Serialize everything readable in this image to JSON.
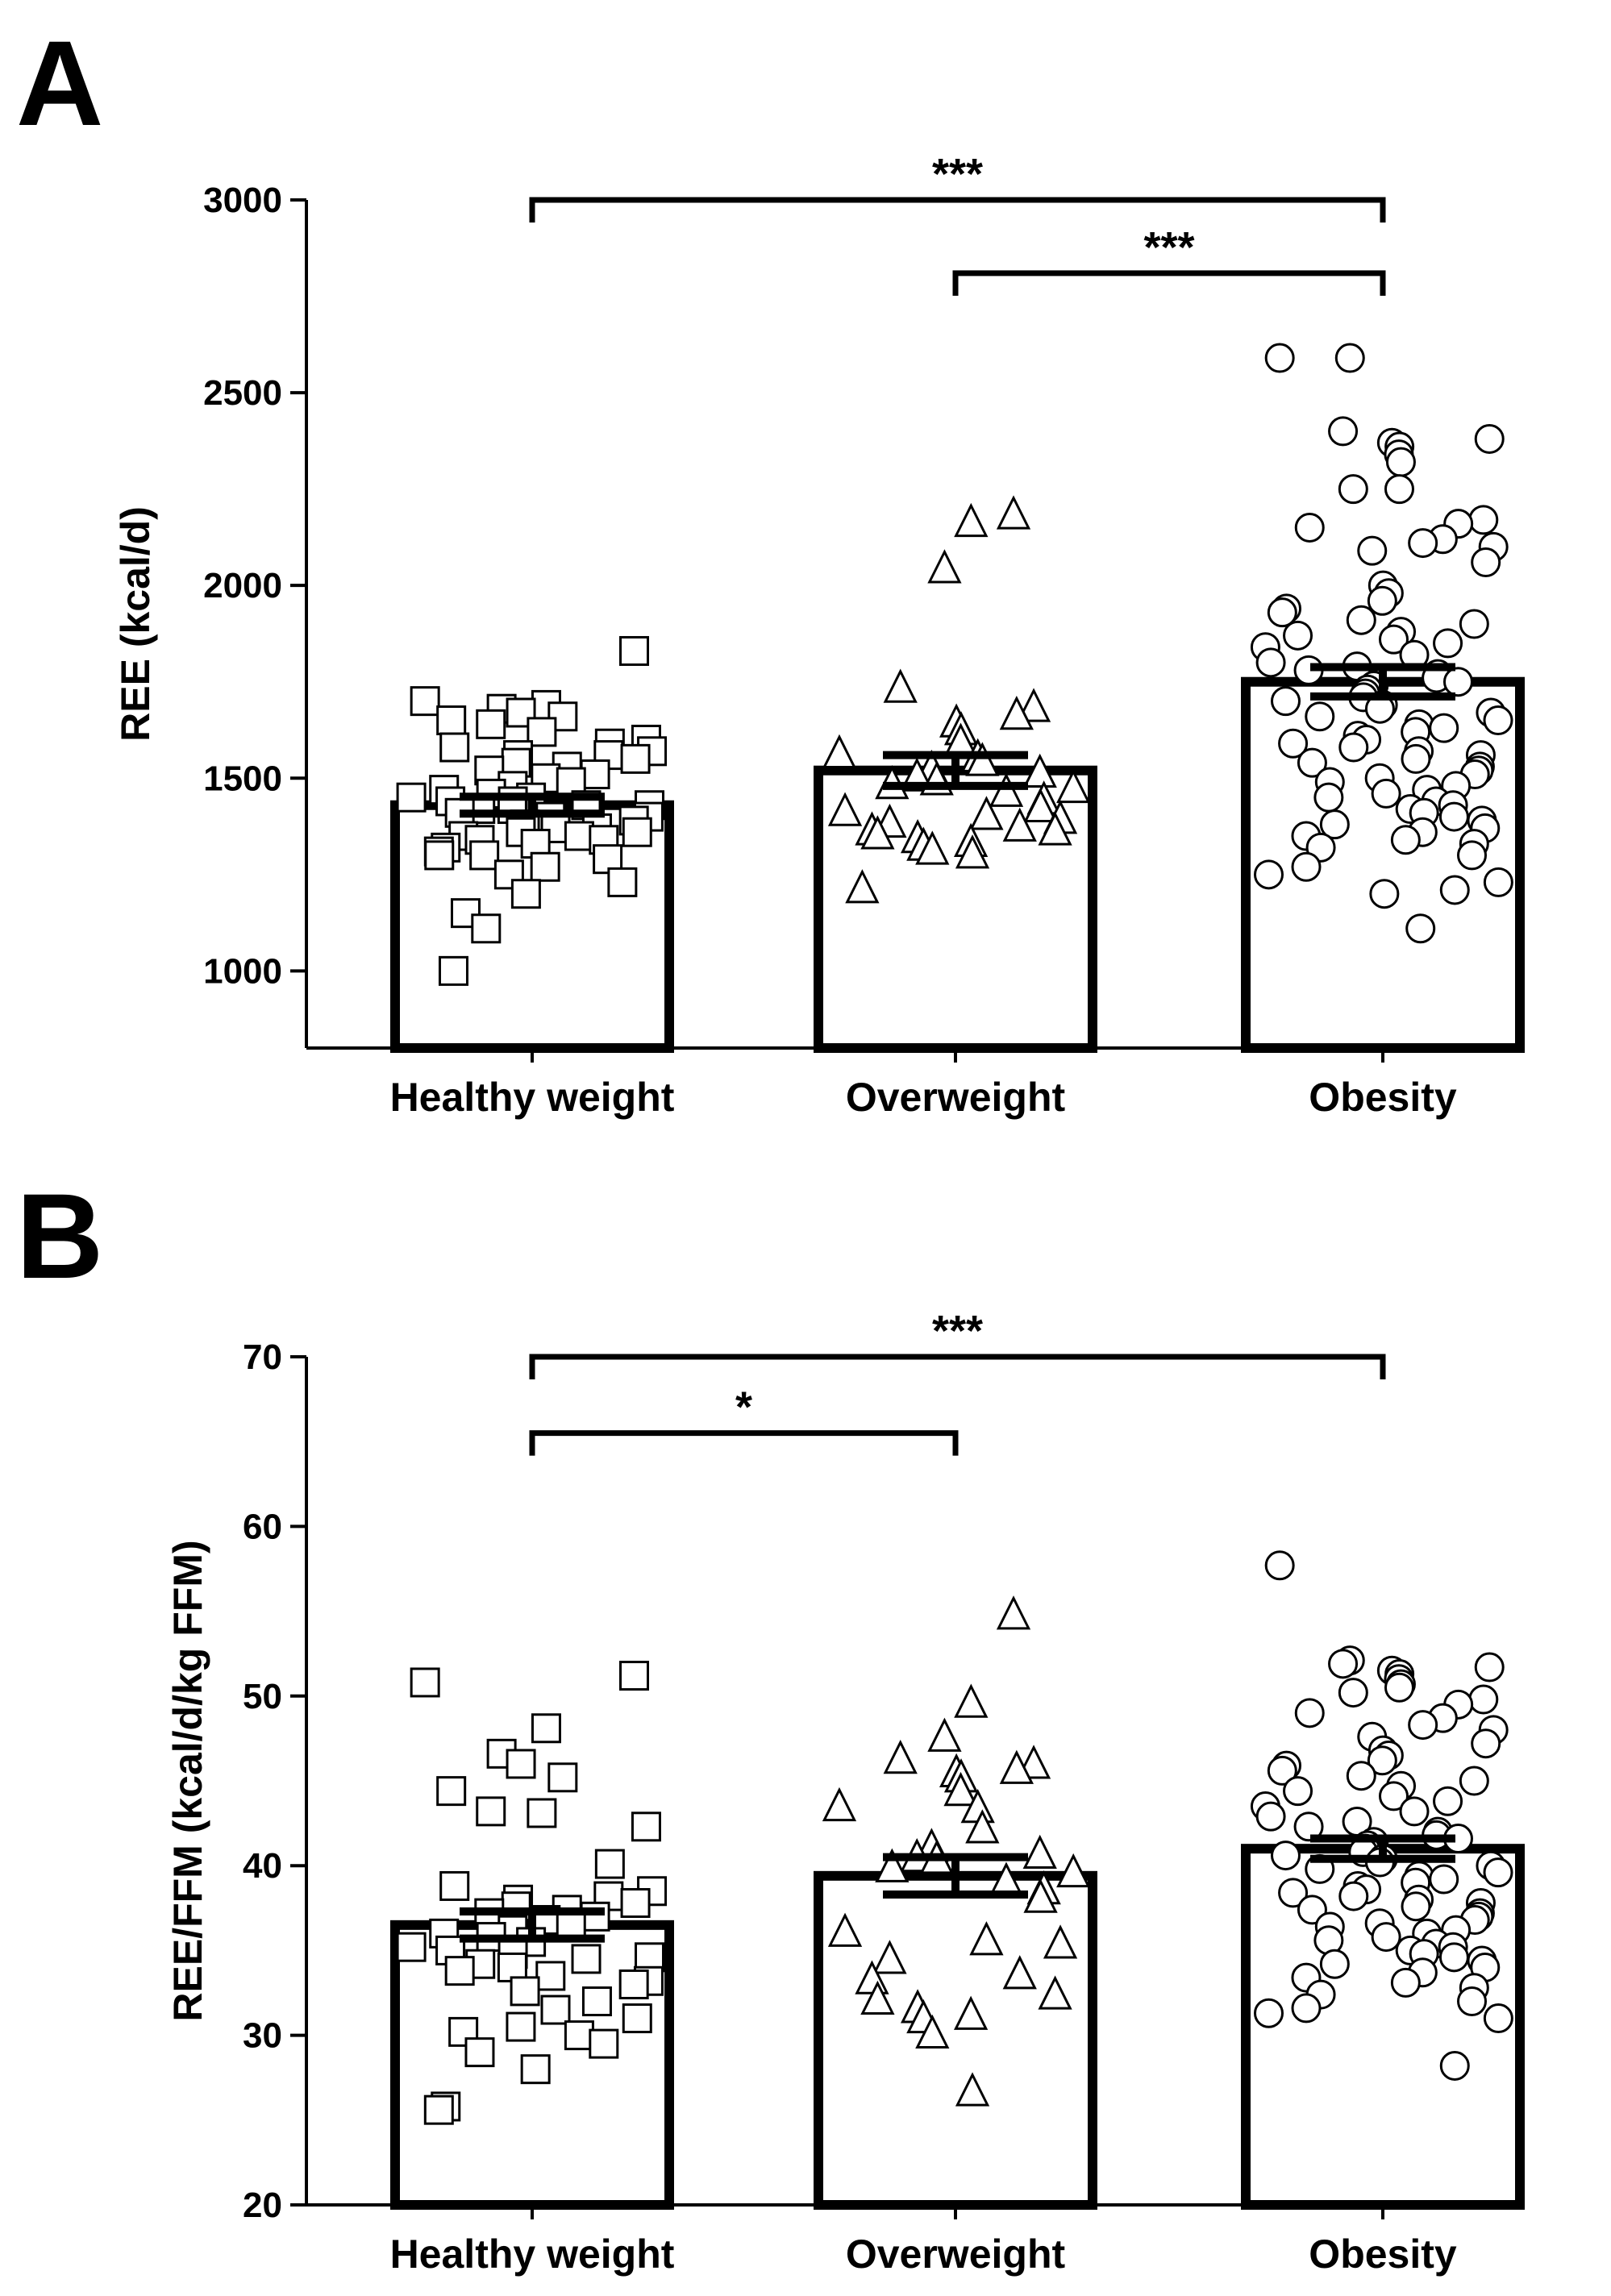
{
  "chart_data": [
    {
      "panel_label": "A",
      "type": "bar",
      "categories": [
        "Healthy weight",
        "Overweight",
        "Obesity"
      ],
      "values": [
        1430,
        1520,
        1750
      ],
      "sem": [
        22,
        40,
        38
      ],
      "ylabel": "REE (kcal/d)",
      "xlabel": "",
      "ylim": [
        800,
        3000
      ],
      "yticks": [
        1000,
        1500,
        2000,
        2500,
        3000
      ],
      "markers": [
        "square",
        "triangle",
        "circle"
      ],
      "points": [
        [
          1830,
          1700,
          1690,
          1680,
          1670,
          1660,
          1650,
          1640,
          1620,
          1600,
          1590,
          1580,
          1570,
          1560,
          1560,
          1550,
          1540,
          1530,
          1520,
          1510,
          1500,
          1490,
          1480,
          1470,
          1460,
          1450,
          1450,
          1440,
          1440,
          1430,
          1430,
          1420,
          1420,
          1410,
          1400,
          1400,
          1390,
          1380,
          1370,
          1370,
          1360,
          1360,
          1350,
          1350,
          1340,
          1340,
          1330,
          1320,
          1310,
          1300,
          1300,
          1290,
          1270,
          1250,
          1230,
          1200,
          1150,
          1110,
          1000
        ],
        [
          2180,
          2160,
          2040,
          1730,
          1680,
          1660,
          1640,
          1620,
          1590,
          1560,
          1550,
          1540,
          1520,
          1510,
          1500,
          1490,
          1480,
          1470,
          1460,
          1440,
          1420,
          1410,
          1400,
          1390,
          1380,
          1370,
          1360,
          1360,
          1350,
          1340,
          1330,
          1320,
          1310,
          1300,
          1210
        ],
        [
          2590,
          2590,
          2400,
          2380,
          2370,
          2360,
          2340,
          2320,
          2250,
          2250,
          2170,
          2160,
          2150,
          2120,
          2110,
          2100,
          2090,
          2060,
          2000,
          1980,
          1960,
          1940,
          1930,
          1910,
          1900,
          1880,
          1870,
          1860,
          1850,
          1840,
          1820,
          1800,
          1790,
          1780,
          1770,
          1760,
          1750,
          1740,
          1730,
          1720,
          1710,
          1700,
          1690,
          1680,
          1670,
          1660,
          1650,
          1640,
          1630,
          1620,
          1610,
          1600,
          1590,
          1580,
          1570,
          1560,
          1550,
          1540,
          1530,
          1520,
          1510,
          1500,
          1490,
          1480,
          1470,
          1460,
          1450,
          1440,
          1430,
          1420,
          1410,
          1400,
          1390,
          1380,
          1370,
          1360,
          1350,
          1340,
          1330,
          1320,
          1300,
          1270,
          1250,
          1230,
          1210,
          1200,
          1110
        ]
      ],
      "significance": [
        {
          "from": 0,
          "to": 2,
          "label": "***",
          "level": 3000
        },
        {
          "from": 1,
          "to": 2,
          "label": "***",
          "level": 2810
        }
      ]
    },
    {
      "panel_label": "B",
      "type": "bar",
      "categories": [
        "Healthy weight",
        "Overweight",
        "Obesity"
      ],
      "values": [
        36.5,
        39.4,
        41.0
      ],
      "sem": [
        0.8,
        1.1,
        0.6
      ],
      "ylabel": "REE/FFM (kcal/d/kg FFM)",
      "xlabel": "",
      "ylim": [
        20,
        70
      ],
      "yticks": [
        20,
        30,
        40,
        50,
        60,
        70
      ],
      "markers": [
        "square",
        "triangle",
        "circle"
      ],
      "points": [
        [
          51.2,
          50.8,
          48.1,
          46.6,
          46.0,
          45.2,
          44.4,
          43.2,
          43.1,
          42.3,
          40.1,
          38.8,
          38.5,
          38.2,
          38.0,
          37.8,
          37.6,
          37.4,
          37.2,
          37.0,
          36.8,
          36.5,
          36.2,
          36.0,
          35.8,
          35.5,
          35.2,
          35.0,
          34.8,
          34.6,
          34.5,
          34.2,
          34.0,
          33.8,
          33.5,
          33.2,
          33.0,
          32.6,
          32.0,
          31.5,
          31.0,
          30.5,
          30.2,
          30.0,
          29.5,
          29.0,
          28.0,
          25.8,
          25.6
        ],
        [
          54.7,
          49.5,
          47.5,
          46.2,
          45.9,
          45.6,
          45.4,
          45.1,
          44.3,
          43.4,
          43.3,
          42.1,
          41.0,
          40.6,
          40.4,
          40.3,
          39.8,
          39.5,
          39.0,
          38.5,
          38.0,
          36.0,
          35.5,
          35.3,
          34.4,
          33.5,
          33.2,
          32.3,
          32.0,
          31.5,
          31.1,
          30.9,
          30.0,
          26.6
        ],
        [
          57.7,
          52.1,
          51.9,
          51.7,
          51.5,
          51.3,
          51.0,
          50.7,
          50.5,
          50.2,
          49.8,
          49.5,
          49.0,
          48.7,
          48.3,
          48.0,
          47.6,
          47.2,
          46.8,
          46.5,
          46.2,
          45.9,
          45.6,
          45.3,
          45.0,
          44.7,
          44.4,
          44.1,
          43.8,
          43.5,
          43.2,
          42.9,
          42.6,
          42.3,
          42.0,
          41.8,
          41.6,
          41.4,
          41.2,
          41.0,
          40.8,
          40.6,
          40.4,
          40.2,
          40.0,
          39.8,
          39.6,
          39.4,
          39.2,
          39.0,
          38.8,
          38.6,
          38.4,
          38.2,
          38.0,
          37.8,
          37.6,
          37.4,
          37.2,
          37.0,
          36.8,
          36.6,
          36.4,
          36.2,
          36.0,
          35.8,
          35.6,
          35.4,
          35.2,
          35.0,
          34.8,
          34.6,
          34.4,
          34.2,
          34.0,
          33.7,
          33.4,
          33.1,
          32.8,
          32.4,
          32.0,
          31.6,
          31.3,
          31.0,
          28.2
        ]
      ],
      "significance": [
        {
          "from": 0,
          "to": 2,
          "label": "***",
          "level": 70
        },
        {
          "from": 0,
          "to": 1,
          "label": "*",
          "level": 65.5
        }
      ]
    }
  ]
}
